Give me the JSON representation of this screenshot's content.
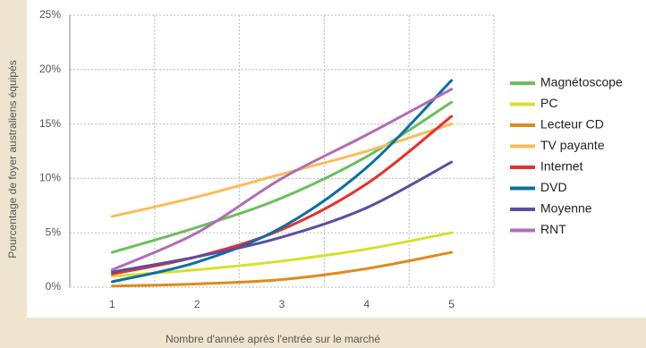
{
  "chart_data": {
    "type": "line",
    "xlabel": "Nombre d'année après l'entrée sur le marché",
    "ylabel": "Pourcentage de foyer australiens équipés",
    "x": [
      1,
      2,
      3,
      4,
      5
    ],
    "xlim": [
      0.5,
      5.5
    ],
    "xticks": [
      1,
      2,
      3,
      4,
      5
    ],
    "ylim": [
      0,
      25
    ],
    "yticks": [
      {
        "value": 0,
        "label": "0%"
      },
      {
        "value": 5,
        "label": "5%"
      },
      {
        "value": 10,
        "label": "10%"
      },
      {
        "value": 15,
        "label": "15%"
      },
      {
        "value": 20,
        "label": "20%"
      },
      {
        "value": 25,
        "label": "25%"
      }
    ],
    "grid": true,
    "legend": "right",
    "series": [
      {
        "name": "Magnétoscope",
        "color": "#6abf5e",
        "values": [
          3.2,
          5.5,
          8.2,
          12,
          17
        ]
      },
      {
        "name": "PC",
        "color": "#d4e12b",
        "values": [
          1.0,
          1.6,
          2.4,
          3.5,
          5.0
        ]
      },
      {
        "name": "Lecteur CD",
        "color": "#e08a1e",
        "values": [
          0.1,
          0.3,
          0.7,
          1.7,
          3.2
        ]
      },
      {
        "name": "TV payante",
        "color": "#f9bd5a",
        "values": [
          6.5,
          8.3,
          10.4,
          12.5,
          15
        ]
      },
      {
        "name": "Internet",
        "color": "#e8302a",
        "values": [
          1.2,
          2.8,
          5.3,
          9.5,
          15.7
        ]
      },
      {
        "name": "DVD",
        "color": "#0a6fa6",
        "values": [
          0.5,
          2.3,
          5.5,
          11,
          19
        ]
      },
      {
        "name": "Moyenne",
        "color": "#5b4ea0",
        "values": [
          1.4,
          2.8,
          4.6,
          7.3,
          11.5
        ]
      },
      {
        "name": "RNT",
        "color": "#b26bb8",
        "values": [
          1.6,
          5,
          10,
          14,
          18.2
        ]
      }
    ]
  }
}
